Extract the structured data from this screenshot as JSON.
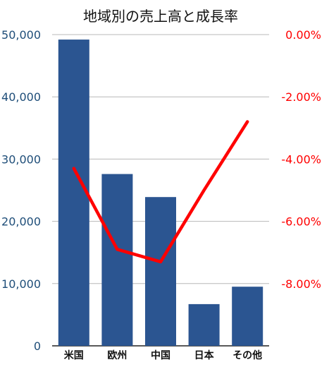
{
  "chart_data": {
    "type": "bar",
    "title": "地域別の売上高と成長率",
    "categories": [
      "米国",
      "欧州",
      "中国",
      "日本",
      "その他"
    ],
    "series": [
      {
        "type": "bar",
        "axis": "left",
        "values": [
          49200,
          27600,
          23900,
          6700,
          9500
        ],
        "color": "#2b5591"
      },
      {
        "type": "line",
        "axis": "right",
        "values": [
          -4.3,
          -6.9,
          -7.3,
          -5.0,
          -2.8
        ],
        "color": "#ff0000"
      }
    ],
    "left_axis": {
      "ylim": [
        0,
        50000
      ],
      "ticks": [
        0,
        10000,
        20000,
        30000,
        40000,
        50000
      ],
      "tick_labels": [
        "0",
        "10,000",
        "20,000",
        "30,000",
        "40,000",
        "50,000"
      ],
      "label_color": "#1f4e79"
    },
    "right_axis": {
      "ylim": [
        -10,
        0
      ],
      "ticks": [
        0,
        -2,
        -4,
        -6,
        -8
      ],
      "tick_labels": [
        "0.00%",
        "-2.00%",
        "-4.00%",
        "-6.00%",
        "-8.00%"
      ],
      "label_color": "#ff0000"
    },
    "grid": true
  }
}
